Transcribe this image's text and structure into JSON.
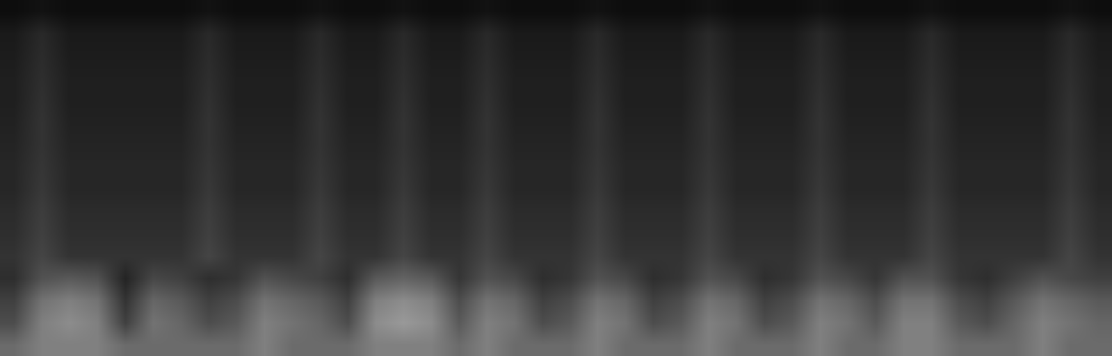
{
  "chart_data": {
    "type": "heatmap",
    "tick_labels": false,
    "zlim": [
      0,
      1
    ],
    "cells": [
      [
        0.05,
        0.07,
        0.05,
        0.05,
        0.05,
        0.05,
        0.05,
        0.07,
        0.05,
        0.05,
        0.05,
        0.07,
        0.05,
        0.05,
        0.07,
        0.05,
        0.05,
        0.07,
        0.05,
        0.05,
        0.05,
        0.07,
        0.05,
        0.05,
        0.05,
        0.07,
        0.05,
        0.05,
        0.05,
        0.07,
        0.05,
        0.05,
        0.05,
        0.07,
        0.05,
        0.05,
        0.05,
        0.05,
        0.07,
        0.05
      ],
      [
        0.1,
        0.16,
        0.1,
        0.1,
        0.1,
        0.1,
        0.1,
        0.16,
        0.1,
        0.1,
        0.1,
        0.16,
        0.1,
        0.1,
        0.16,
        0.1,
        0.1,
        0.16,
        0.1,
        0.1,
        0.1,
        0.16,
        0.1,
        0.1,
        0.1,
        0.16,
        0.1,
        0.1,
        0.1,
        0.16,
        0.1,
        0.1,
        0.1,
        0.16,
        0.1,
        0.1,
        0.1,
        0.1,
        0.16,
        0.1
      ],
      [
        0.11,
        0.17,
        0.11,
        0.11,
        0.11,
        0.11,
        0.11,
        0.17,
        0.11,
        0.11,
        0.11,
        0.17,
        0.11,
        0.11,
        0.17,
        0.11,
        0.11,
        0.17,
        0.11,
        0.11,
        0.11,
        0.17,
        0.11,
        0.11,
        0.11,
        0.17,
        0.11,
        0.11,
        0.11,
        0.17,
        0.11,
        0.11,
        0.11,
        0.17,
        0.11,
        0.11,
        0.11,
        0.11,
        0.17,
        0.11
      ],
      [
        0.12,
        0.18,
        0.12,
        0.12,
        0.12,
        0.12,
        0.12,
        0.18,
        0.12,
        0.12,
        0.12,
        0.18,
        0.12,
        0.12,
        0.18,
        0.12,
        0.12,
        0.18,
        0.12,
        0.12,
        0.12,
        0.18,
        0.12,
        0.12,
        0.12,
        0.18,
        0.12,
        0.12,
        0.12,
        0.18,
        0.12,
        0.12,
        0.12,
        0.18,
        0.12,
        0.12,
        0.12,
        0.12,
        0.18,
        0.12
      ],
      [
        0.12,
        0.19,
        0.12,
        0.12,
        0.12,
        0.12,
        0.12,
        0.19,
        0.12,
        0.12,
        0.12,
        0.19,
        0.12,
        0.12,
        0.19,
        0.12,
        0.12,
        0.19,
        0.12,
        0.12,
        0.12,
        0.19,
        0.12,
        0.12,
        0.12,
        0.19,
        0.12,
        0.12,
        0.12,
        0.19,
        0.12,
        0.12,
        0.12,
        0.19,
        0.12,
        0.12,
        0.12,
        0.12,
        0.19,
        0.12
      ],
      [
        0.13,
        0.2,
        0.13,
        0.13,
        0.13,
        0.13,
        0.13,
        0.2,
        0.13,
        0.13,
        0.13,
        0.2,
        0.13,
        0.13,
        0.2,
        0.13,
        0.13,
        0.2,
        0.13,
        0.13,
        0.13,
        0.2,
        0.13,
        0.13,
        0.13,
        0.2,
        0.13,
        0.13,
        0.13,
        0.2,
        0.13,
        0.13,
        0.13,
        0.2,
        0.13,
        0.13,
        0.13,
        0.13,
        0.2,
        0.13
      ],
      [
        0.14,
        0.2,
        0.14,
        0.14,
        0.14,
        0.14,
        0.14,
        0.2,
        0.14,
        0.14,
        0.14,
        0.2,
        0.14,
        0.14,
        0.2,
        0.14,
        0.14,
        0.2,
        0.14,
        0.14,
        0.14,
        0.2,
        0.14,
        0.14,
        0.14,
        0.2,
        0.14,
        0.14,
        0.14,
        0.2,
        0.14,
        0.14,
        0.14,
        0.2,
        0.14,
        0.14,
        0.14,
        0.14,
        0.2,
        0.14
      ],
      [
        0.15,
        0.21,
        0.15,
        0.15,
        0.15,
        0.15,
        0.15,
        0.21,
        0.15,
        0.15,
        0.15,
        0.21,
        0.15,
        0.15,
        0.21,
        0.15,
        0.15,
        0.21,
        0.15,
        0.15,
        0.15,
        0.21,
        0.15,
        0.15,
        0.15,
        0.21,
        0.15,
        0.15,
        0.15,
        0.21,
        0.15,
        0.15,
        0.15,
        0.21,
        0.15,
        0.15,
        0.15,
        0.15,
        0.21,
        0.15
      ],
      [
        0.15,
        0.22,
        0.15,
        0.15,
        0.15,
        0.15,
        0.15,
        0.22,
        0.15,
        0.15,
        0.15,
        0.22,
        0.15,
        0.15,
        0.22,
        0.15,
        0.15,
        0.22,
        0.15,
        0.15,
        0.15,
        0.22,
        0.15,
        0.15,
        0.15,
        0.22,
        0.15,
        0.15,
        0.15,
        0.22,
        0.15,
        0.15,
        0.15,
        0.22,
        0.15,
        0.15,
        0.15,
        0.15,
        0.22,
        0.15
      ],
      [
        0.17,
        0.24,
        0.17,
        0.17,
        0.17,
        0.17,
        0.17,
        0.24,
        0.17,
        0.17,
        0.17,
        0.24,
        0.17,
        0.17,
        0.24,
        0.17,
        0.17,
        0.24,
        0.17,
        0.17,
        0.17,
        0.24,
        0.17,
        0.17,
        0.17,
        0.24,
        0.17,
        0.17,
        0.17,
        0.24,
        0.17,
        0.17,
        0.17,
        0.24,
        0.17,
        0.17,
        0.17,
        0.17,
        0.24,
        0.17
      ],
      [
        0.18,
        0.25,
        0.18,
        0.18,
        0.18,
        0.18,
        0.18,
        0.25,
        0.18,
        0.18,
        0.18,
        0.25,
        0.18,
        0.18,
        0.25,
        0.18,
        0.18,
        0.25,
        0.18,
        0.18,
        0.18,
        0.25,
        0.18,
        0.18,
        0.18,
        0.25,
        0.18,
        0.18,
        0.18,
        0.25,
        0.18,
        0.18,
        0.18,
        0.25,
        0.18,
        0.18,
        0.18,
        0.18,
        0.25,
        0.18
      ],
      [
        0.2,
        0.27,
        0.2,
        0.2,
        0.2,
        0.2,
        0.2,
        0.27,
        0.2,
        0.2,
        0.2,
        0.27,
        0.2,
        0.2,
        0.27,
        0.2,
        0.2,
        0.27,
        0.2,
        0.2,
        0.2,
        0.27,
        0.2,
        0.2,
        0.2,
        0.27,
        0.2,
        0.2,
        0.2,
        0.27,
        0.2,
        0.2,
        0.2,
        0.27,
        0.2,
        0.2,
        0.2,
        0.2,
        0.27,
        0.2
      ],
      [
        0.18,
        0.32,
        0.35,
        0.32,
        0.14,
        0.28,
        0.25,
        0.18,
        0.21,
        0.32,
        0.28,
        0.25,
        0.18,
        0.35,
        0.39,
        0.35,
        0.21,
        0.32,
        0.28,
        0.18,
        0.21,
        0.32,
        0.28,
        0.18,
        0.21,
        0.32,
        0.28,
        0.18,
        0.21,
        0.32,
        0.28,
        0.21,
        0.32,
        0.32,
        0.21,
        0.18,
        0.25,
        0.32,
        0.28,
        0.25
      ],
      [
        0.25,
        0.45,
        0.5,
        0.45,
        0.2,
        0.4,
        0.35,
        0.25,
        0.3,
        0.45,
        0.4,
        0.35,
        0.25,
        0.5,
        0.55,
        0.5,
        0.3,
        0.45,
        0.4,
        0.25,
        0.3,
        0.45,
        0.4,
        0.25,
        0.3,
        0.45,
        0.4,
        0.25,
        0.3,
        0.45,
        0.4,
        0.3,
        0.45,
        0.45,
        0.3,
        0.25,
        0.35,
        0.45,
        0.4,
        0.35
      ],
      [
        0.3,
        0.5,
        0.55,
        0.5,
        0.25,
        0.45,
        0.4,
        0.3,
        0.35,
        0.5,
        0.45,
        0.4,
        0.3,
        0.55,
        0.6,
        0.55,
        0.35,
        0.5,
        0.45,
        0.3,
        0.35,
        0.5,
        0.45,
        0.3,
        0.35,
        0.5,
        0.45,
        0.3,
        0.35,
        0.5,
        0.45,
        0.35,
        0.5,
        0.5,
        0.35,
        0.3,
        0.4,
        0.5,
        0.45,
        0.4
      ],
      [
        0.42,
        0.5,
        0.5,
        0.5,
        0.42,
        0.42,
        0.42,
        0.42,
        0.42,
        0.5,
        0.42,
        0.42,
        0.42,
        0.5,
        0.5,
        0.5,
        0.42,
        0.5,
        0.42,
        0.42,
        0.42,
        0.5,
        0.42,
        0.42,
        0.42,
        0.5,
        0.42,
        0.42,
        0.42,
        0.5,
        0.42,
        0.42,
        0.5,
        0.5,
        0.42,
        0.42,
        0.42,
        0.5,
        0.42,
        0.42
      ]
    ]
  }
}
